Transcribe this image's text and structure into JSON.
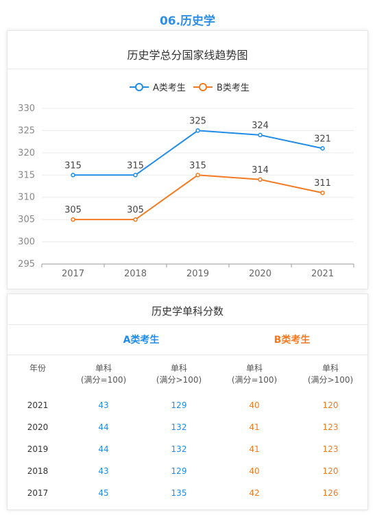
{
  "page_title": "06.历史学",
  "chart_title": "历史学总分国家线趋势图",
  "chart_data": {
    "type": "line",
    "title": "历史学总分国家线趋势图",
    "categories": [
      "2017",
      "2018",
      "2019",
      "2020",
      "2021"
    ],
    "series": [
      {
        "name": "A类考生",
        "color": "#1e8ce8",
        "values": [
          315,
          315,
          325,
          324,
          321
        ]
      },
      {
        "name": "B类考生",
        "color": "#f47920",
        "values": [
          305,
          305,
          315,
          314,
          311
        ]
      }
    ],
    "ylim": [
      295,
      330
    ],
    "yticks": [
      "330",
      "325",
      "320",
      "315",
      "310",
      "305",
      "300",
      "295"
    ],
    "grid": true,
    "legend_position": "top"
  },
  "table": {
    "title": "历史学单科分数",
    "group_a": "A类考生",
    "group_b": "B类考生",
    "col_year": "年份",
    "col_sub_label": "单科",
    "col_le100": "(满分=100)",
    "col_gt100": "(满分>100)",
    "rows": [
      {
        "year": "2021",
        "a1": "43",
        "a2": "129",
        "b1": "40",
        "b2": "120"
      },
      {
        "year": "2020",
        "a1": "44",
        "a2": "132",
        "b1": "41",
        "b2": "123"
      },
      {
        "year": "2019",
        "a1": "44",
        "a2": "132",
        "b1": "41",
        "b2": "123"
      },
      {
        "year": "2018",
        "a1": "43",
        "a2": "129",
        "b1": "40",
        "b2": "120"
      },
      {
        "year": "2017",
        "a1": "45",
        "a2": "135",
        "b1": "42",
        "b2": "126"
      }
    ]
  }
}
